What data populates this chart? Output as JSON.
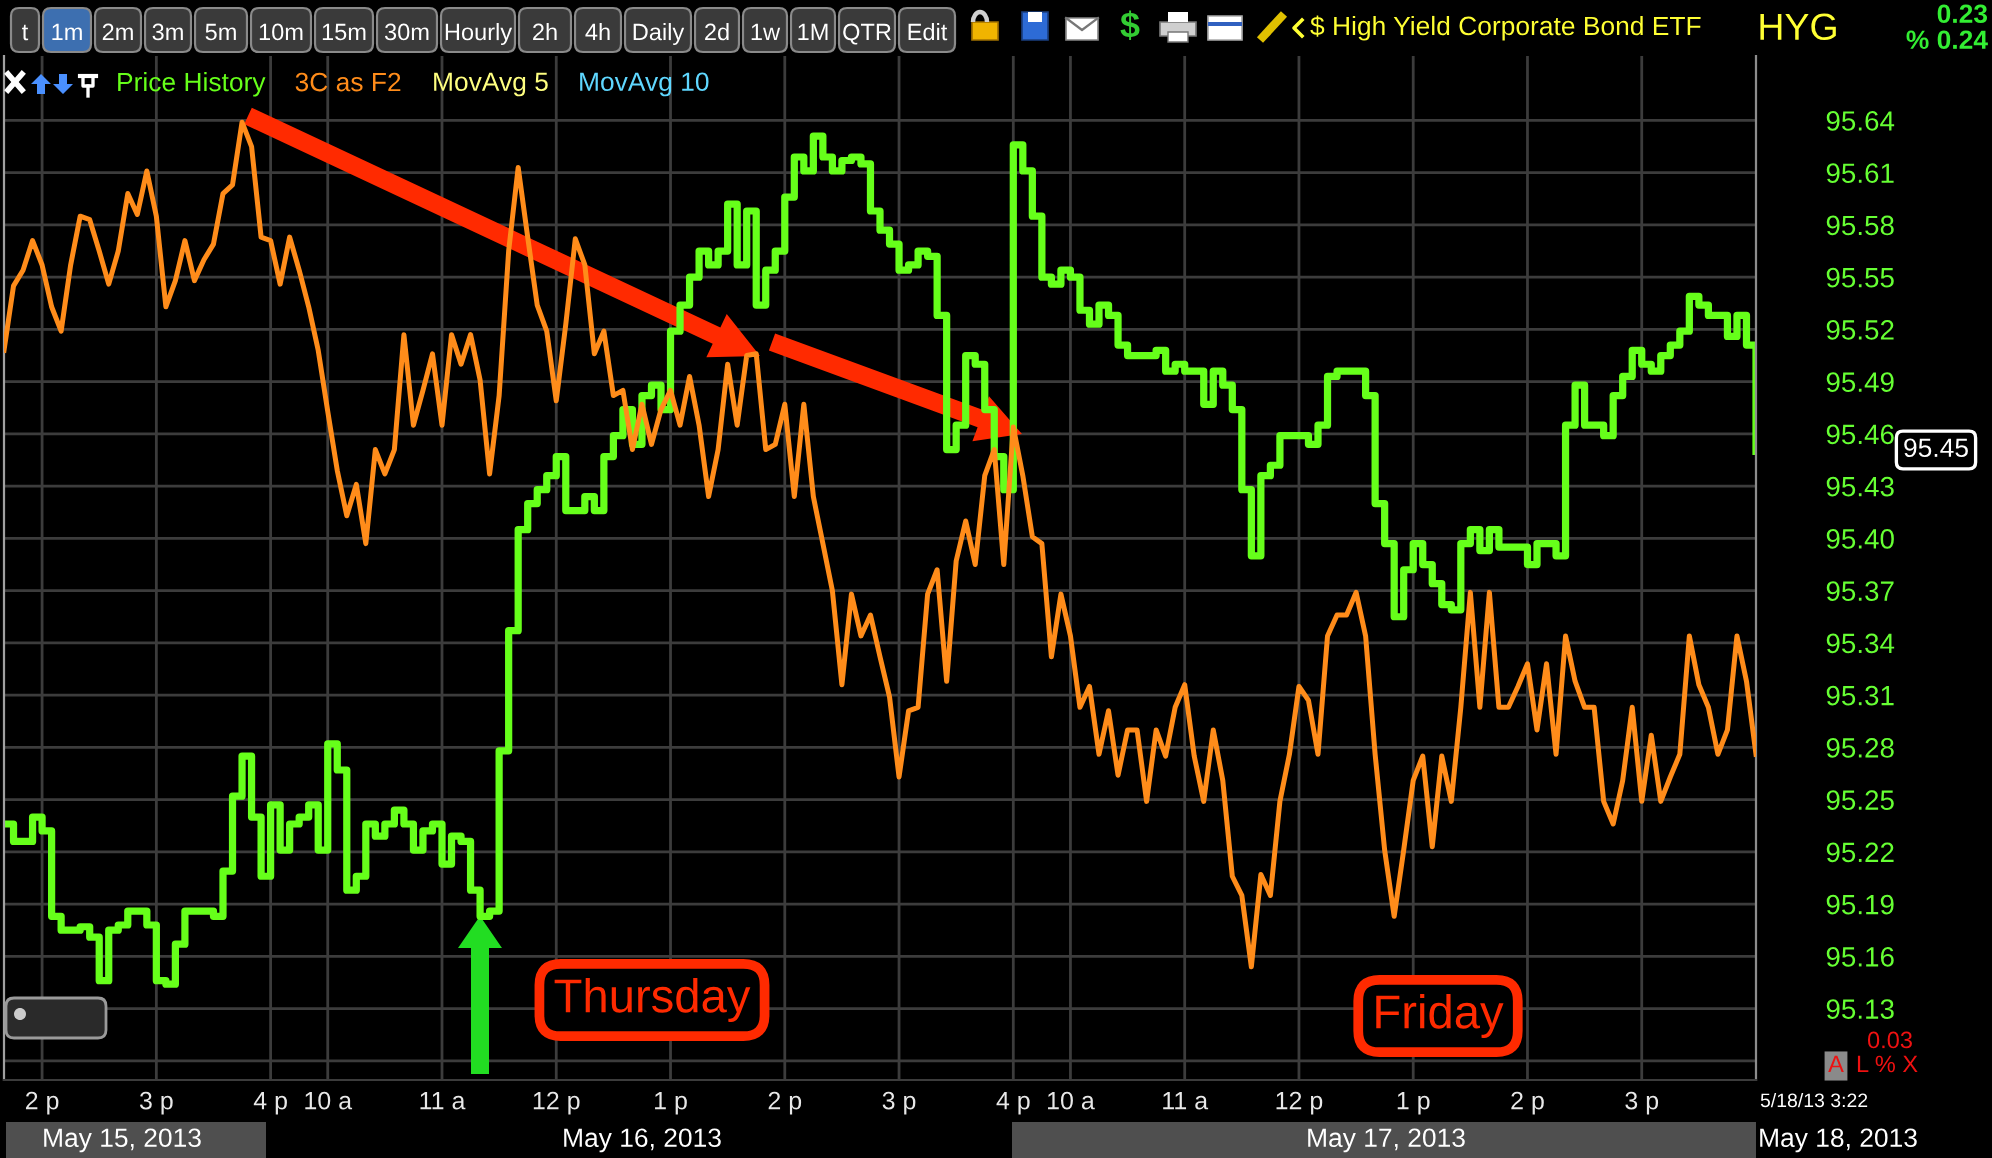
{
  "chart_data": {
    "type": "line",
    "title": "$ High Yield Corporate Bond ETF",
    "subtitle": "HYG",
    "categories": [
      null,
      null,
      null,
      null,
      "2 p",
      null,
      null,
      null,
      null,
      null,
      null,
      null,
      null,
      null,
      null,
      null,
      "3 p",
      null,
      null,
      null,
      null,
      null,
      null,
      null,
      null,
      null,
      null,
      null,
      "4 p",
      null,
      null,
      null,
      null,
      null,
      "10 a",
      null,
      null,
      null,
      null,
      null,
      null,
      null,
      null,
      null,
      null,
      null,
      "11 a",
      null,
      null,
      null,
      null,
      null,
      null,
      null,
      null,
      null,
      null,
      null,
      "12 p",
      null,
      null,
      null,
      null,
      null,
      null,
      null,
      null,
      null,
      null,
      null,
      "1 p",
      null,
      null,
      null,
      null,
      null,
      null,
      null,
      null,
      null,
      null,
      null,
      "2 p",
      null,
      null,
      null,
      null,
      null,
      null,
      null,
      null,
      null,
      null,
      null,
      "3 p",
      null,
      null,
      null,
      null,
      null,
      null,
      null,
      null,
      null,
      null,
      null,
      "4 p",
      null,
      null,
      null,
      null,
      null,
      "10 a",
      null,
      null,
      null,
      null,
      null,
      null,
      null,
      null,
      null,
      null,
      null,
      "11 a",
      null,
      null,
      null,
      null,
      null,
      null,
      null,
      null,
      null,
      null,
      null,
      "12 p",
      null,
      null,
      null,
      null,
      null,
      null,
      null,
      null,
      null,
      null,
      null,
      "1 p",
      null,
      null,
      null,
      null,
      null,
      null,
      null,
      null,
      null,
      null,
      null,
      "2 p",
      null,
      null,
      null,
      null,
      null,
      null,
      null,
      null,
      null,
      null,
      null,
      "3 p",
      null,
      null,
      null,
      null,
      null,
      null,
      null,
      null,
      null,
      null,
      null,
      null
    ],
    "ylim": [
      95.089,
      95.677
    ],
    "yticks": [
      {
        "value": 95.1,
        "label": null
      },
      95.13,
      95.16,
      95.19,
      95.22,
      95.25,
      95.28,
      95.31,
      95.34,
      95.37,
      {
        "value": 95.4,
        "label": "95.40"
      },
      95.43,
      95.46,
      95.49,
      95.52,
      95.55,
      95.58,
      95.61,
      95.64
    ],
    "grid": true,
    "legend": "top left",
    "series": [
      {
        "name": "Price History",
        "type": "step",
        "color": "#66ff1a",
        "values": [
          95.236,
          95.226,
          95.226,
          95.24,
          95.232,
          95.183,
          95.175,
          95.175,
          95.177,
          95.171,
          95.146,
          95.175,
          95.178,
          95.186,
          95.186,
          95.178,
          95.146,
          95.144,
          95.167,
          95.186,
          95.186,
          95.186,
          95.183,
          95.209,
          95.252,
          95.275,
          95.24,
          95.206,
          95.247,
          95.221,
          95.236,
          95.24,
          95.247,
          95.221,
          95.282,
          95.267,
          95.198,
          95.206,
          95.236,
          95.229,
          95.236,
          95.244,
          95.236,
          95.221,
          95.232,
          95.236,
          95.213,
          95.229,
          95.226,
          95.198,
          95.183,
          95.186,
          95.278,
          95.347,
          95.405,
          95.42,
          95.428,
          95.436,
          95.447,
          95.416,
          95.416,
          95.424,
          95.416,
          95.447,
          95.459,
          95.474,
          95.454,
          95.482,
          95.488,
          95.474,
          95.519,
          95.534,
          95.55,
          95.565,
          95.557,
          95.565,
          95.592,
          95.557,
          95.588,
          95.534,
          95.554,
          95.565,
          95.596,
          95.619,
          95.611,
          95.631,
          95.619,
          95.611,
          95.617,
          95.619,
          95.615,
          95.588,
          95.577,
          95.569,
          95.554,
          95.557,
          95.565,
          95.562,
          95.528,
          95.451,
          95.465,
          95.505,
          95.5,
          95.474,
          95.447,
          95.428,
          95.626,
          95.611,
          95.585,
          95.55,
          95.546,
          95.554,
          95.55,
          95.531,
          95.523,
          95.534,
          95.528,
          95.511,
          95.505,
          95.505,
          95.505,
          95.508,
          95.496,
          95.5,
          95.496,
          95.496,
          95.477,
          95.496,
          95.488,
          95.474,
          95.428,
          95.39,
          95.436,
          95.442,
          95.459,
          95.459,
          95.459,
          95.454,
          95.465,
          95.493,
          95.496,
          95.496,
          95.496,
          95.482,
          95.42,
          95.397,
          95.355,
          95.382,
          95.397,
          95.385,
          95.374,
          95.362,
          95.359,
          95.397,
          95.405,
          95.393,
          95.405,
          95.395,
          95.395,
          95.395,
          95.385,
          95.397,
          95.397,
          95.39,
          95.465,
          95.488,
          95.465,
          95.465,
          95.459,
          95.482,
          95.493,
          95.508,
          95.5,
          95.496,
          95.505,
          95.511,
          95.519,
          95.539,
          95.534,
          95.528,
          95.528,
          95.516,
          95.528,
          95.511,
          95.45
        ]
      },
      {
        "name": "3C as F2",
        "color": "#ff8c1a",
        "values": [
          95.508,
          95.545,
          95.554,
          95.571,
          95.557,
          95.533,
          95.519,
          95.557,
          95.585,
          95.583,
          95.565,
          95.546,
          95.565,
          95.598,
          95.586,
          95.611,
          95.585,
          95.533,
          95.548,
          95.571,
          95.548,
          95.56,
          95.569,
          95.598,
          95.603,
          95.639,
          95.625,
          95.573,
          95.571,
          95.546,
          95.573,
          95.554,
          95.533,
          95.508,
          95.473,
          95.439,
          95.413,
          95.431,
          95.397,
          95.451,
          95.437,
          95.451,
          95.517,
          95.465,
          95.485,
          95.506,
          95.465,
          95.517,
          95.5,
          95.517,
          95.491,
          95.437,
          95.482,
          95.565,
          95.613,
          95.573,
          95.534,
          95.519,
          95.479,
          95.523,
          95.572,
          95.557,
          95.506,
          95.519,
          95.482,
          95.485,
          95.451,
          95.477,
          95.454,
          95.474,
          95.485,
          95.465,
          95.493,
          95.465,
          95.424,
          95.451,
          95.5,
          95.465,
          95.505,
          95.506,
          95.451,
          95.454,
          95.477,
          95.424,
          95.477,
          95.424,
          95.397,
          95.37,
          95.316,
          95.368,
          95.344,
          95.356,
          95.332,
          95.309,
          95.263,
          95.301,
          95.303,
          95.368,
          95.382,
          95.318,
          95.387,
          95.41,
          95.385,
          95.436,
          95.451,
          95.385,
          95.464,
          95.436,
          95.401,
          95.397,
          95.332,
          95.368,
          95.344,
          95.303,
          95.315,
          95.276,
          95.301,
          95.264,
          95.29,
          95.29,
          95.249,
          95.29,
          95.275,
          95.303,
          95.316,
          95.275,
          95.249,
          95.29,
          95.261,
          95.206,
          95.195,
          95.154,
          95.207,
          95.195,
          95.249,
          95.276,
          95.315,
          95.307,
          95.276,
          95.344,
          95.356,
          95.356,
          95.369,
          95.344,
          95.276,
          95.221,
          95.183,
          95.221,
          95.261,
          95.275,
          95.223,
          95.275,
          95.249,
          95.303,
          95.369,
          95.303,
          95.369,
          95.303,
          95.303,
          95.315,
          95.328,
          95.29,
          95.328,
          95.276,
          95.344,
          95.318,
          95.303,
          95.303,
          95.249,
          95.236,
          95.261,
          95.303,
          95.249,
          95.287,
          95.249,
          95.263,
          95.276,
          95.344,
          95.316,
          95.303,
          95.276,
          95.29,
          95.344,
          95.318,
          95.276
        ]
      }
    ],
    "annotations": [
      "Thursday",
      "Friday",
      "t",
      "1m",
      "2m",
      "3m",
      "5m",
      "10m",
      "15m",
      "30m",
      "Hourly",
      "2h",
      "4h",
      "Daily",
      "2d",
      "1w",
      "1M",
      "QTR",
      "Edit",
      "$",
      "0.23",
      "% 0.24",
      "0.03",
      "A",
      "L % X",
      "5/18/13 3:22",
      "95.45",
      "May 15, 2013",
      "May 16, 2013",
      "May 17, 2013",
      "May 18, 2013",
      "MovAvg 5",
      "MovAvg 10"
    ]
  }
}
